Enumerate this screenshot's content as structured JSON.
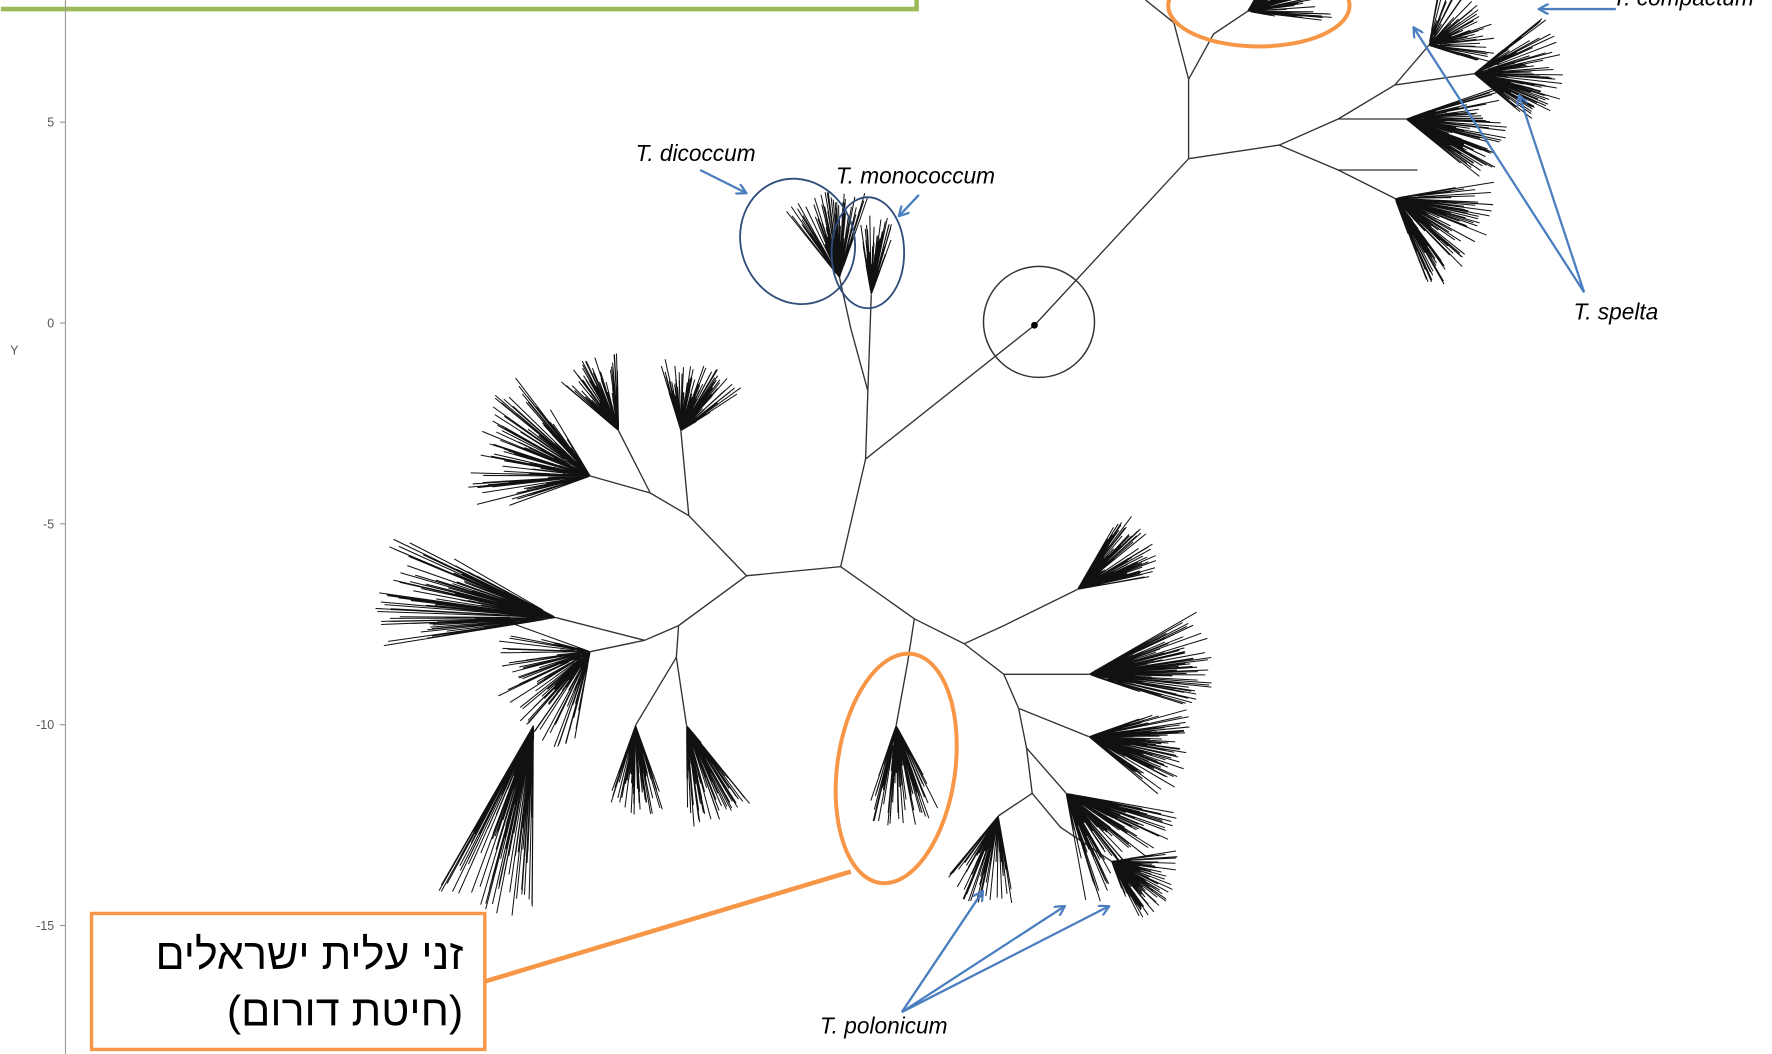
{
  "axis": {
    "label": "Y",
    "ticks": [
      5,
      0,
      -5,
      -10,
      -15
    ]
  },
  "annotations": {
    "dicoccum": "T. dicoccum",
    "monococcum": "T. monococcum",
    "spelta": "T. spelta",
    "compactum": "T. compactum",
    "polonicum": "T. polonicum"
  },
  "callout": {
    "line1": "זני עלית ישראלים",
    "line2": "(חיטת דורום)"
  }
}
